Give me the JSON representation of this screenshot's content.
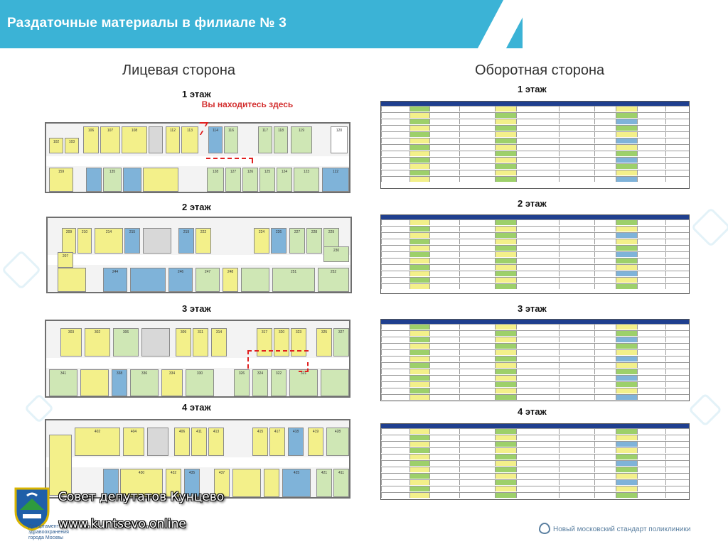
{
  "header": {
    "title": "Раздаточные материалы в филиале № 3"
  },
  "left": {
    "title": "Лицевая сторона",
    "you_are_here": "Вы находитесь здесь",
    "floors": [
      {
        "label": "1 этаж"
      },
      {
        "label": "2 этаж"
      },
      {
        "label": "3 этаж"
      },
      {
        "label": "4 этаж"
      }
    ]
  },
  "right": {
    "title": "Оборотная сторона",
    "floors": [
      {
        "label": "1 этаж"
      },
      {
        "label": "2 этаж"
      },
      {
        "label": "3 этаж"
      },
      {
        "label": "4 этаж"
      }
    ]
  },
  "floor1_rooms": [
    "106",
    "107",
    "108",
    "112",
    "113",
    "114",
    "116",
    "117",
    "118",
    "119",
    "120",
    "102",
    "103",
    "101",
    "159",
    "135",
    "128",
    "127",
    "126",
    "125",
    "124",
    "123",
    "122"
  ],
  "floor2_rooms": [
    "209",
    "210",
    "214",
    "215",
    "218",
    "219",
    "222",
    "224",
    "226",
    "227",
    "228",
    "229",
    "230",
    "207",
    "205",
    "204",
    "244",
    "246",
    "247",
    "248",
    "251",
    "252"
  ],
  "floor3_rooms": [
    "303",
    "302",
    "306",
    "309",
    "311",
    "314",
    "317",
    "320",
    "323",
    "325",
    "327",
    "341",
    "338",
    "336",
    "334",
    "330",
    "326",
    "324",
    "322",
    "321"
  ],
  "floor4_rooms": [
    "402",
    "404",
    "406",
    "411",
    "413",
    "415",
    "417",
    "418",
    "419",
    "428",
    "430",
    "432",
    "435",
    "437",
    "425",
    "421",
    "411"
  ],
  "watermark": {
    "line1": "Совет депутатов Кунцево",
    "line2": "www.kuntsevo.online"
  },
  "footer": {
    "dept": [
      "Департамент",
      "здравоохранения",
      "города Москвы"
    ],
    "standard": "Новый московский стандарт поликлиники"
  },
  "colors": {
    "header": "#3bb3d6",
    "yellow": "#f3f08a",
    "green": "#cfe7b5",
    "blue": "#7fb3d9",
    "red": "#d32f2f"
  }
}
